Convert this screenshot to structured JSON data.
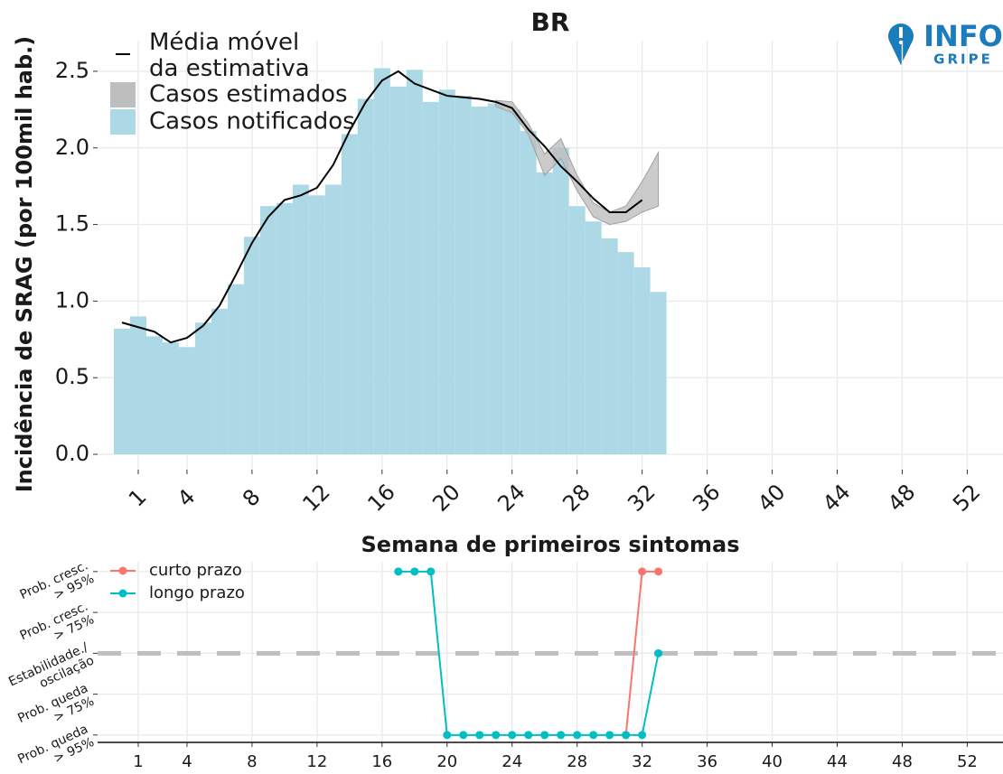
{
  "logo": {
    "title": "INFO",
    "subtitle": "GRIPE"
  },
  "chart_data": [
    {
      "type": "bar",
      "title": "BR",
      "x_label": "Semana de primeiros sintomas",
      "y_label": "Incidência de SRAG (por 100mil hab.)",
      "xlim": [
        -1.5,
        54.2
      ],
      "xticks": [
        1,
        4,
        8,
        12,
        16,
        20,
        24,
        28,
        32,
        36,
        40,
        44,
        48,
        52
      ],
      "ylim": [
        -0.1,
        2.7
      ],
      "yticks": [
        {
          "value": 0,
          "label": "0.0"
        },
        0.5,
        {
          "value": 1,
          "label": "1.0"
        },
        1.5,
        {
          "value": 2,
          "label": "2.0"
        },
        2.5
      ],
      "grid": true,
      "legend": "top-left",
      "series": [
        {
          "name": "Média móvel da estimativa",
          "type": "line",
          "color": "#000000",
          "x": [
            0,
            1,
            2,
            3,
            4,
            5,
            6,
            7,
            8,
            9,
            10,
            11,
            12,
            13,
            14,
            15,
            16,
            17,
            18,
            19,
            20,
            21,
            22,
            23,
            24,
            25,
            26,
            27,
            28,
            29,
            30,
            31,
            32
          ],
          "values": [
            0.86,
            0.83,
            0.8,
            0.73,
            0.76,
            0.84,
            0.97,
            1.17,
            1.38,
            1.55,
            1.66,
            1.69,
            1.74,
            1.89,
            2.11,
            2.3,
            2.44,
            2.5,
            2.42,
            2.38,
            2.34,
            2.33,
            2.32,
            2.3,
            2.26,
            2.12,
            2.01,
            1.88,
            1.78,
            1.67,
            1.58,
            1.58,
            1.66
          ]
        },
        {
          "name": "Casos estimados",
          "type": "band",
          "color": "#bebebe",
          "x": [
            23,
            24,
            25,
            26,
            27,
            28,
            29,
            30,
            31,
            32,
            33
          ],
          "lower": [
            2.27,
            2.23,
            2.09,
            1.82,
            1.93,
            1.72,
            1.55,
            1.5,
            1.52,
            1.58,
            1.62
          ],
          "upper": [
            2.31,
            2.3,
            2.16,
            1.96,
            2.06,
            1.82,
            1.64,
            1.58,
            1.62,
            1.78,
            1.97
          ]
        },
        {
          "name": "Casos notificados",
          "type": "bar",
          "color": "#add8e6",
          "x": [
            0,
            1,
            2,
            3,
            4,
            5,
            6,
            7,
            8,
            9,
            10,
            11,
            12,
            13,
            14,
            15,
            16,
            17,
            18,
            19,
            20,
            21,
            22,
            23,
            24,
            25,
            26,
            27,
            28,
            29,
            30,
            31,
            32,
            33
          ],
          "values": [
            0.82,
            0.9,
            0.77,
            0.73,
            0.7,
            0.86,
            0.95,
            1.11,
            1.42,
            1.62,
            1.64,
            1.76,
            1.69,
            1.76,
            2.09,
            2.32,
            2.52,
            2.4,
            2.51,
            2.3,
            2.38,
            2.34,
            2.27,
            2.29,
            2.25,
            2.11,
            1.84,
            2.0,
            1.62,
            1.52,
            1.41,
            1.32,
            1.22,
            1.06
          ]
        }
      ]
    },
    {
      "type": "line",
      "xlim": [
        -1.5,
        54.2
      ],
      "xticks": [
        1,
        4,
        8,
        12,
        16,
        20,
        24,
        28,
        32,
        36,
        40,
        44,
        48,
        52
      ],
      "ylim": [
        -2.18,
        2.24
      ],
      "yticks": [
        {
          "value": -2,
          "label": "Prob. queda > 95%"
        },
        {
          "value": -1,
          "label": "Prob. queda > 75%"
        },
        {
          "value": 0,
          "label": "Estabilidade./ oscilação"
        },
        {
          "value": 1,
          "label": "Prob. cresc. > 75%"
        },
        {
          "value": 2,
          "label": "Prob. cresc. > 95%"
        }
      ],
      "grid": true,
      "legend": "top-left",
      "reference_line": {
        "value": 0,
        "color": "#bebebe"
      },
      "series": [
        {
          "name": "curto prazo",
          "color": "#f8766d",
          "x": [
            31,
            32,
            33
          ],
          "values": [
            -2,
            2,
            2
          ]
        },
        {
          "name": "longo prazo",
          "color": "#00bfc4",
          "x": [
            17,
            18,
            19,
            20,
            21,
            22,
            23,
            24,
            25,
            26,
            27,
            28,
            29,
            30,
            31,
            32,
            33
          ],
          "values": [
            2,
            2,
            2,
            -2,
            -2,
            -2,
            -2,
            -2,
            -2,
            -2,
            -2,
            -2,
            -2,
            -2,
            -2,
            -2,
            0
          ]
        }
      ]
    }
  ]
}
